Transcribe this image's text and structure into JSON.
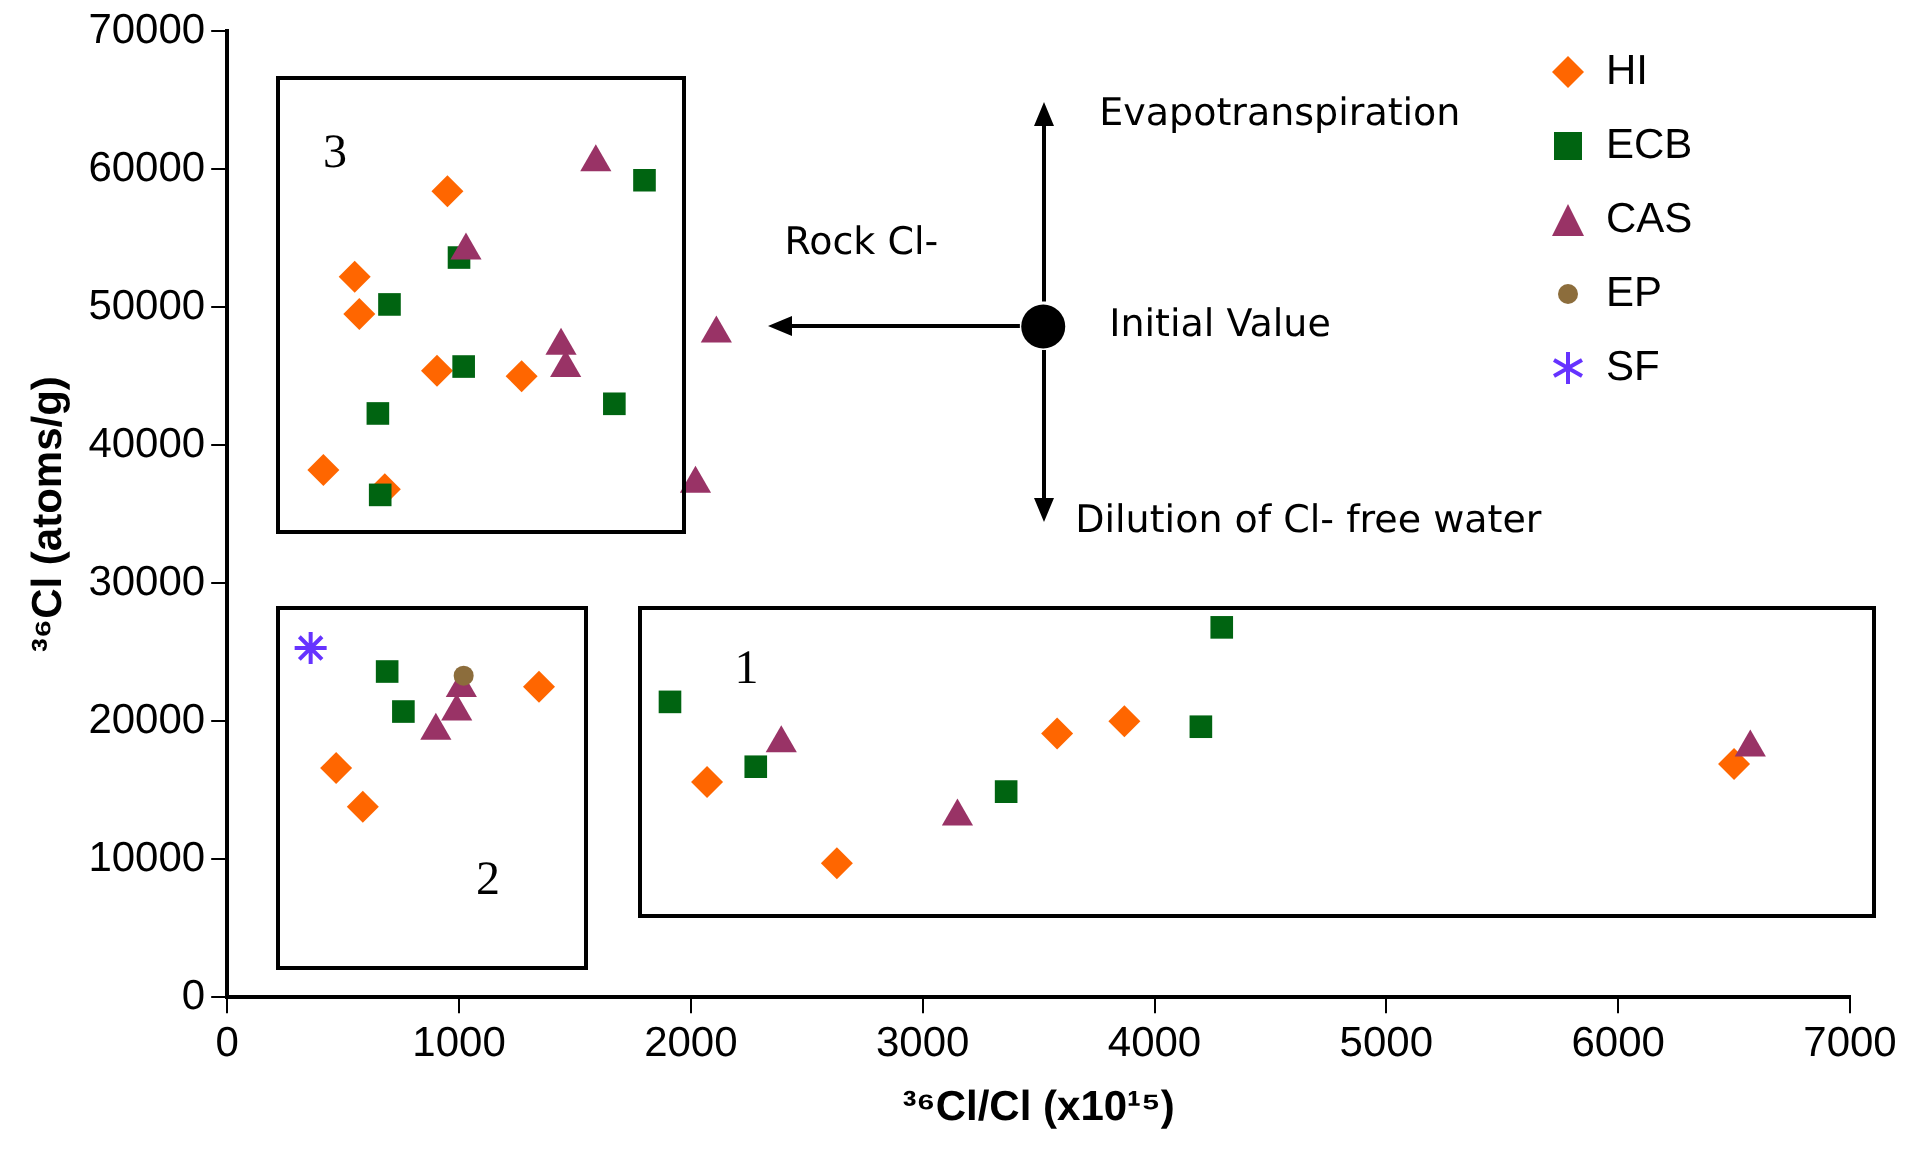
{
  "chart_data": {
    "type": "scatter",
    "xlabel": "³⁶Cl/Cl (x10¹⁵)",
    "ylabel": "³⁶Cl (atoms/g)",
    "xlim": [
      0,
      7000
    ],
    "xticks": [
      0,
      1000,
      2000,
      3000,
      4000,
      5000,
      6000,
      7000
    ],
    "ylim": [
      0,
      70000
    ],
    "yticks": [
      0,
      10000,
      20000,
      30000,
      40000,
      50000,
      60000,
      70000
    ],
    "grid": false,
    "legend": "top right",
    "series": [
      {
        "name": "HI",
        "color": "#ff6600",
        "marker": "diamond",
        "x": [
          950,
          550,
          570,
          905,
          1270,
          415,
          680,
          1345,
          470,
          585,
          2070,
          2630,
          3580,
          3870,
          6500
        ],
        "values": [
          58400,
          52200,
          49500,
          45400,
          45000,
          38200,
          36800,
          22500,
          16600,
          13800,
          15600,
          9700,
          19100,
          20000,
          16900
        ]
      },
      {
        "name": "ECB",
        "color": "#006411",
        "marker": "square",
        "x": [
          1800,
          1000,
          700,
          1020,
          1670,
          650,
          660,
          690,
          760,
          1910,
          2280,
          3360,
          4200,
          4290
        ],
        "values": [
          59200,
          53600,
          50200,
          45700,
          43000,
          42300,
          36400,
          23600,
          20700,
          21400,
          16700,
          14900,
          19600,
          26800
        ]
      },
      {
        "name": "CAS",
        "color": "#993366",
        "marker": "triangle",
        "x": [
          1590,
          1030,
          1440,
          1460,
          2110,
          2020,
          1010,
          990,
          900,
          2390,
          3150,
          6570
        ],
        "values": [
          60500,
          54100,
          47200,
          45600,
          48100,
          37200,
          22400,
          20700,
          19300,
          18400,
          13100,
          18100
        ]
      },
      {
        "name": "EP",
        "color": "#8c6d3c",
        "marker": "circle",
        "x": [
          1020
        ],
        "values": [
          23300
        ]
      },
      {
        "name": "SF",
        "color": "#6633ff",
        "marker": "cross",
        "x": [
          360
        ],
        "values": [
          25300
        ]
      },
      {
        "color": "#000000",
        "marker": "circle",
        "x": [
          3520
        ],
        "values": [
          48600
        ]
      }
    ],
    "annotations": [
      {
        "text": "Initial Value",
        "x": 3520,
        "y": 48600
      },
      "Evapotranspiration",
      "Rock Cl-",
      "Dilution of Cl- free water",
      "3",
      "2",
      "1"
    ]
  }
}
